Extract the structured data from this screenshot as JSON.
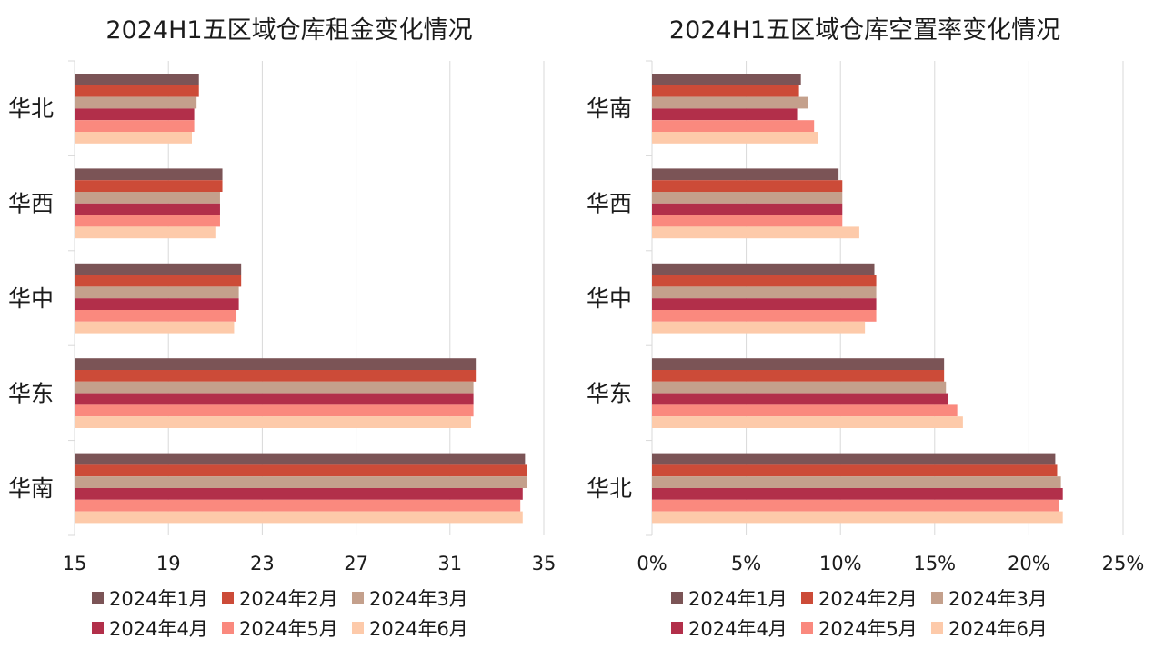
{
  "chart_data": [
    {
      "type": "bar",
      "orientation": "horizontal",
      "title": "2024H1五区域仓库租金变化情况",
      "xlabel": "",
      "ylabel": "",
      "categories": [
        "华北",
        "华西",
        "华中",
        "华东",
        "华南"
      ],
      "xlim": [
        15,
        35
      ],
      "ticks": [
        "15",
        "19",
        "23",
        "27",
        "31",
        "35"
      ],
      "tick_values": [
        15,
        19,
        23,
        27,
        31,
        35
      ],
      "grid": true,
      "legend_position": "bottom",
      "series": [
        {
          "name": "2024年1月",
          "color": "#7b5456",
          "values": [
            20.3,
            21.3,
            22.1,
            32.1,
            34.2
          ]
        },
        {
          "name": "2024年2月",
          "color": "#cc4b38",
          "values": [
            20.3,
            21.3,
            22.1,
            32.1,
            34.3
          ]
        },
        {
          "name": "2024年3月",
          "color": "#c4a08c",
          "values": [
            20.2,
            21.2,
            22.0,
            32.0,
            34.3
          ]
        },
        {
          "name": "2024年4月",
          "color": "#b22f4a",
          "values": [
            20.1,
            21.2,
            22.0,
            32.0,
            34.1
          ]
        },
        {
          "name": "2024年5月",
          "color": "#fa897e",
          "values": [
            20.1,
            21.2,
            21.9,
            32.0,
            34.0
          ]
        },
        {
          "name": "2024年6月",
          "color": "#fdcaaa",
          "values": [
            20.0,
            21.0,
            21.8,
            31.9,
            34.1
          ]
        }
      ]
    },
    {
      "type": "bar",
      "orientation": "horizontal",
      "title": "2024H1五区域仓库空置率变化情况",
      "xlabel": "",
      "ylabel": "",
      "categories": [
        "华南",
        "华西",
        "华中",
        "华东",
        "华北"
      ],
      "xlim": [
        0,
        25
      ],
      "ticks": [
        "0%",
        "5%",
        "10%",
        "15%",
        "20%",
        "25%"
      ],
      "tick_values": [
        0,
        5,
        10,
        15,
        20,
        25
      ],
      "grid": true,
      "legend_position": "bottom",
      "series": [
        {
          "name": "2024年1月",
          "color": "#7b5456",
          "values": [
            7.9,
            9.9,
            11.8,
            15.5,
            21.4
          ]
        },
        {
          "name": "2024年2月",
          "color": "#cc4b38",
          "values": [
            7.8,
            10.1,
            11.9,
            15.5,
            21.5
          ]
        },
        {
          "name": "2024年3月",
          "color": "#c4a08c",
          "values": [
            8.3,
            10.1,
            11.9,
            15.6,
            21.7
          ]
        },
        {
          "name": "2024年4月",
          "color": "#b22f4a",
          "values": [
            7.7,
            10.1,
            11.9,
            15.7,
            21.8
          ]
        },
        {
          "name": "2024年5月",
          "color": "#fa897e",
          "values": [
            8.6,
            10.1,
            11.9,
            16.2,
            21.6
          ]
        },
        {
          "name": "2024年6月",
          "color": "#fdcaaa",
          "values": [
            8.8,
            11.0,
            11.3,
            16.5,
            21.8
          ]
        }
      ]
    }
  ]
}
